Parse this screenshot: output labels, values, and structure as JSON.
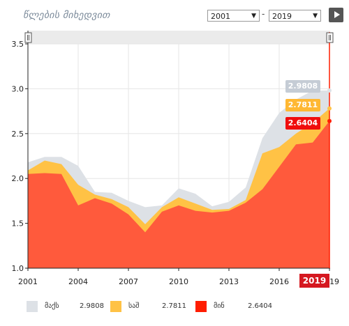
{
  "header": {
    "title": "წლების მიხედვით",
    "from_year": "2001",
    "to_year": "2019",
    "dash": "-"
  },
  "icons": {
    "dropdown": "chevron-down-icon",
    "play": "play-icon",
    "handle": "slider-handle-icon"
  },
  "colors": {
    "max": "#dde1e6",
    "avg": "#ffc245",
    "min": "#ff5a3c",
    "min_line": "#ff1d00",
    "badge_max": "#c5ccd5",
    "badge_avg": "#ffb833",
    "badge_min": "#f00d0d",
    "current_year": "#d51820"
  },
  "badges": {
    "max": "2.9808",
    "avg": "2.7811",
    "min": "2.6404"
  },
  "current_year_label": "2019",
  "legend": [
    {
      "key": "max",
      "name": "მაქს",
      "value": "2.9808"
    },
    {
      "key": "avg",
      "name": "საშ",
      "value": "2.7811"
    },
    {
      "key": "min",
      "name": "მინ",
      "value": "2.6404"
    }
  ],
  "chart_data": {
    "type": "area",
    "x": [
      2001,
      2002,
      2003,
      2004,
      2005,
      2006,
      2007,
      2008,
      2009,
      2010,
      2011,
      2012,
      2013,
      2014,
      2015,
      2016,
      2017,
      2018,
      2019
    ],
    "series": [
      {
        "name": "მაქს",
        "values": [
          2.18,
          2.24,
          2.24,
          2.14,
          1.85,
          1.84,
          1.75,
          1.68,
          1.7,
          1.89,
          1.83,
          1.69,
          1.74,
          1.9,
          2.45,
          2.73,
          2.88,
          2.98,
          2.9808
        ]
      },
      {
        "name": "საშ",
        "values": [
          2.09,
          2.2,
          2.16,
          1.93,
          1.82,
          1.77,
          1.68,
          1.49,
          1.68,
          1.79,
          1.72,
          1.65,
          1.66,
          1.76,
          2.28,
          2.35,
          2.5,
          2.62,
          2.7811
        ]
      },
      {
        "name": "მინ",
        "values": [
          2.05,
          2.06,
          2.05,
          1.7,
          1.78,
          1.72,
          1.6,
          1.4,
          1.63,
          1.7,
          1.64,
          1.62,
          1.64,
          1.73,
          1.88,
          2.13,
          2.38,
          2.4,
          2.6404
        ]
      }
    ],
    "ylim": [
      1.0,
      3.5
    ],
    "y_ticks": [
      "1.0",
      "1.5",
      "2.0",
      "2.5",
      "3.0",
      "3.5"
    ],
    "x_ticks": [
      "2001",
      "2004",
      "2007",
      "2010",
      "2013",
      "2016",
      "2019"
    ],
    "grid": true
  }
}
